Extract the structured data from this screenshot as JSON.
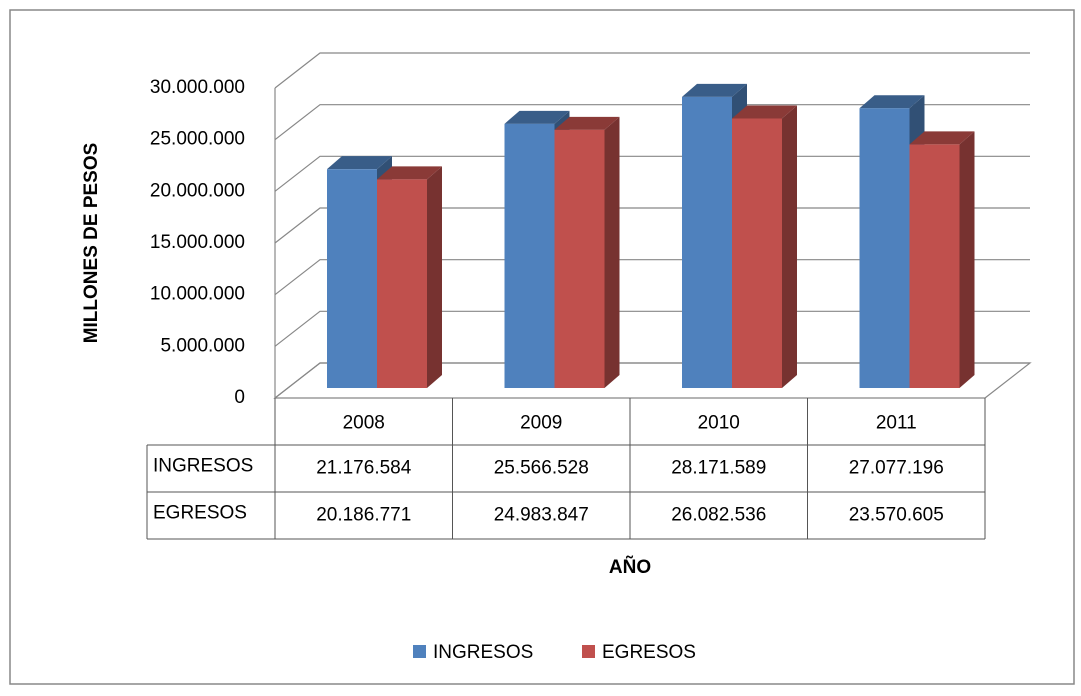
{
  "chart_data": {
    "type": "bar3d",
    "y_label": "MILLONES DE PESOS",
    "x_label": "AÑO",
    "categories": [
      "2008",
      "2009",
      "2010",
      "2011"
    ],
    "series": [
      {
        "name": "INGRESOS",
        "color": "#4f81bd",
        "values": [
          21176584,
          25566528,
          28171589,
          27077196
        ],
        "value_labels": [
          "21.176.584",
          "25.566.528",
          "28.171.589",
          "27.077.196"
        ]
      },
      {
        "name": "EGRESOS",
        "color": "#c0504d",
        "values": [
          20186771,
          24983847,
          26082536,
          23570605
        ],
        "value_labels": [
          "20.186.771",
          "24.983.847",
          "26.082.536",
          "23.570.605"
        ]
      }
    ],
    "ylim": [
      0,
      30000000
    ],
    "yticks": [
      0,
      {
        "value": 5000000,
        "label": "5.000.000"
      },
      {
        "value": 10000000,
        "label": "10.000.000"
      },
      {
        "value": 15000000,
        "label": "15.000.000"
      },
      {
        "value": 20000000,
        "label": "20.000.000"
      },
      {
        "value": 25000000,
        "label": "25.000.000"
      },
      {
        "value": 30000000,
        "label": "30.000.000"
      }
    ],
    "grid": true,
    "legend": "bottom"
  }
}
